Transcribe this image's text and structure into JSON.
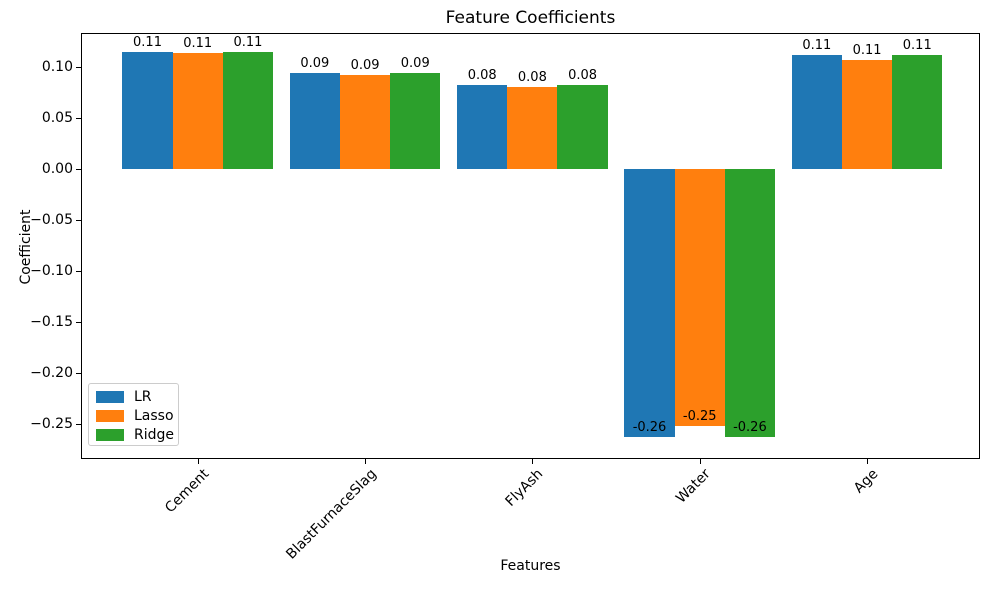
{
  "chart_data": {
    "type": "bar",
    "title": "Feature Coefficients",
    "xlabel": "Features",
    "ylabel": "Coefficient",
    "categories": [
      "Cement",
      "BlastFurnaceSlag",
      "FlyAsh",
      "Water",
      "Age"
    ],
    "series": [
      {
        "name": "LR",
        "color": "#1f77b4",
        "values": [
          0.114,
          0.094,
          0.082,
          -0.263,
          0.111
        ],
        "bar_labels": [
          "0.11",
          "0.09",
          "0.08",
          "-0.26",
          "0.11"
        ]
      },
      {
        "name": "Lasso",
        "color": "#ff7f0e",
        "values": [
          0.113,
          0.092,
          0.08,
          -0.252,
          0.107
        ],
        "bar_labels": [
          "0.11",
          "0.09",
          "0.08",
          "-0.25",
          "0.11"
        ]
      },
      {
        "name": "Ridge",
        "color": "#2ca02c",
        "values": [
          0.114,
          0.094,
          0.082,
          -0.263,
          0.111
        ],
        "bar_labels": [
          "0.11",
          "0.09",
          "0.08",
          "-0.26",
          "0.11"
        ]
      }
    ],
    "yticks": [
      {
        "v": 0.1,
        "label": "0.10"
      },
      {
        "v": 0.05,
        "label": "0.05"
      },
      {
        "v": 0.0,
        "label": "0.00"
      },
      {
        "v": -0.05,
        "label": "−0.05"
      },
      {
        "v": -0.1,
        "label": "−0.10"
      },
      {
        "v": -0.15,
        "label": "−0.15"
      },
      {
        "v": -0.2,
        "label": "−0.20"
      },
      {
        "v": -0.25,
        "label": "−0.25"
      }
    ],
    "ylim": [
      -0.2846,
      0.133
    ],
    "xlim": [
      -0.6976,
      4.675
    ],
    "bar_width": 0.3,
    "grid": false,
    "legend": {
      "position": "lower-left"
    },
    "colors": {
      "background": "#ffffff",
      "spine": "#000000",
      "legend_border": "#cccccc"
    }
  }
}
